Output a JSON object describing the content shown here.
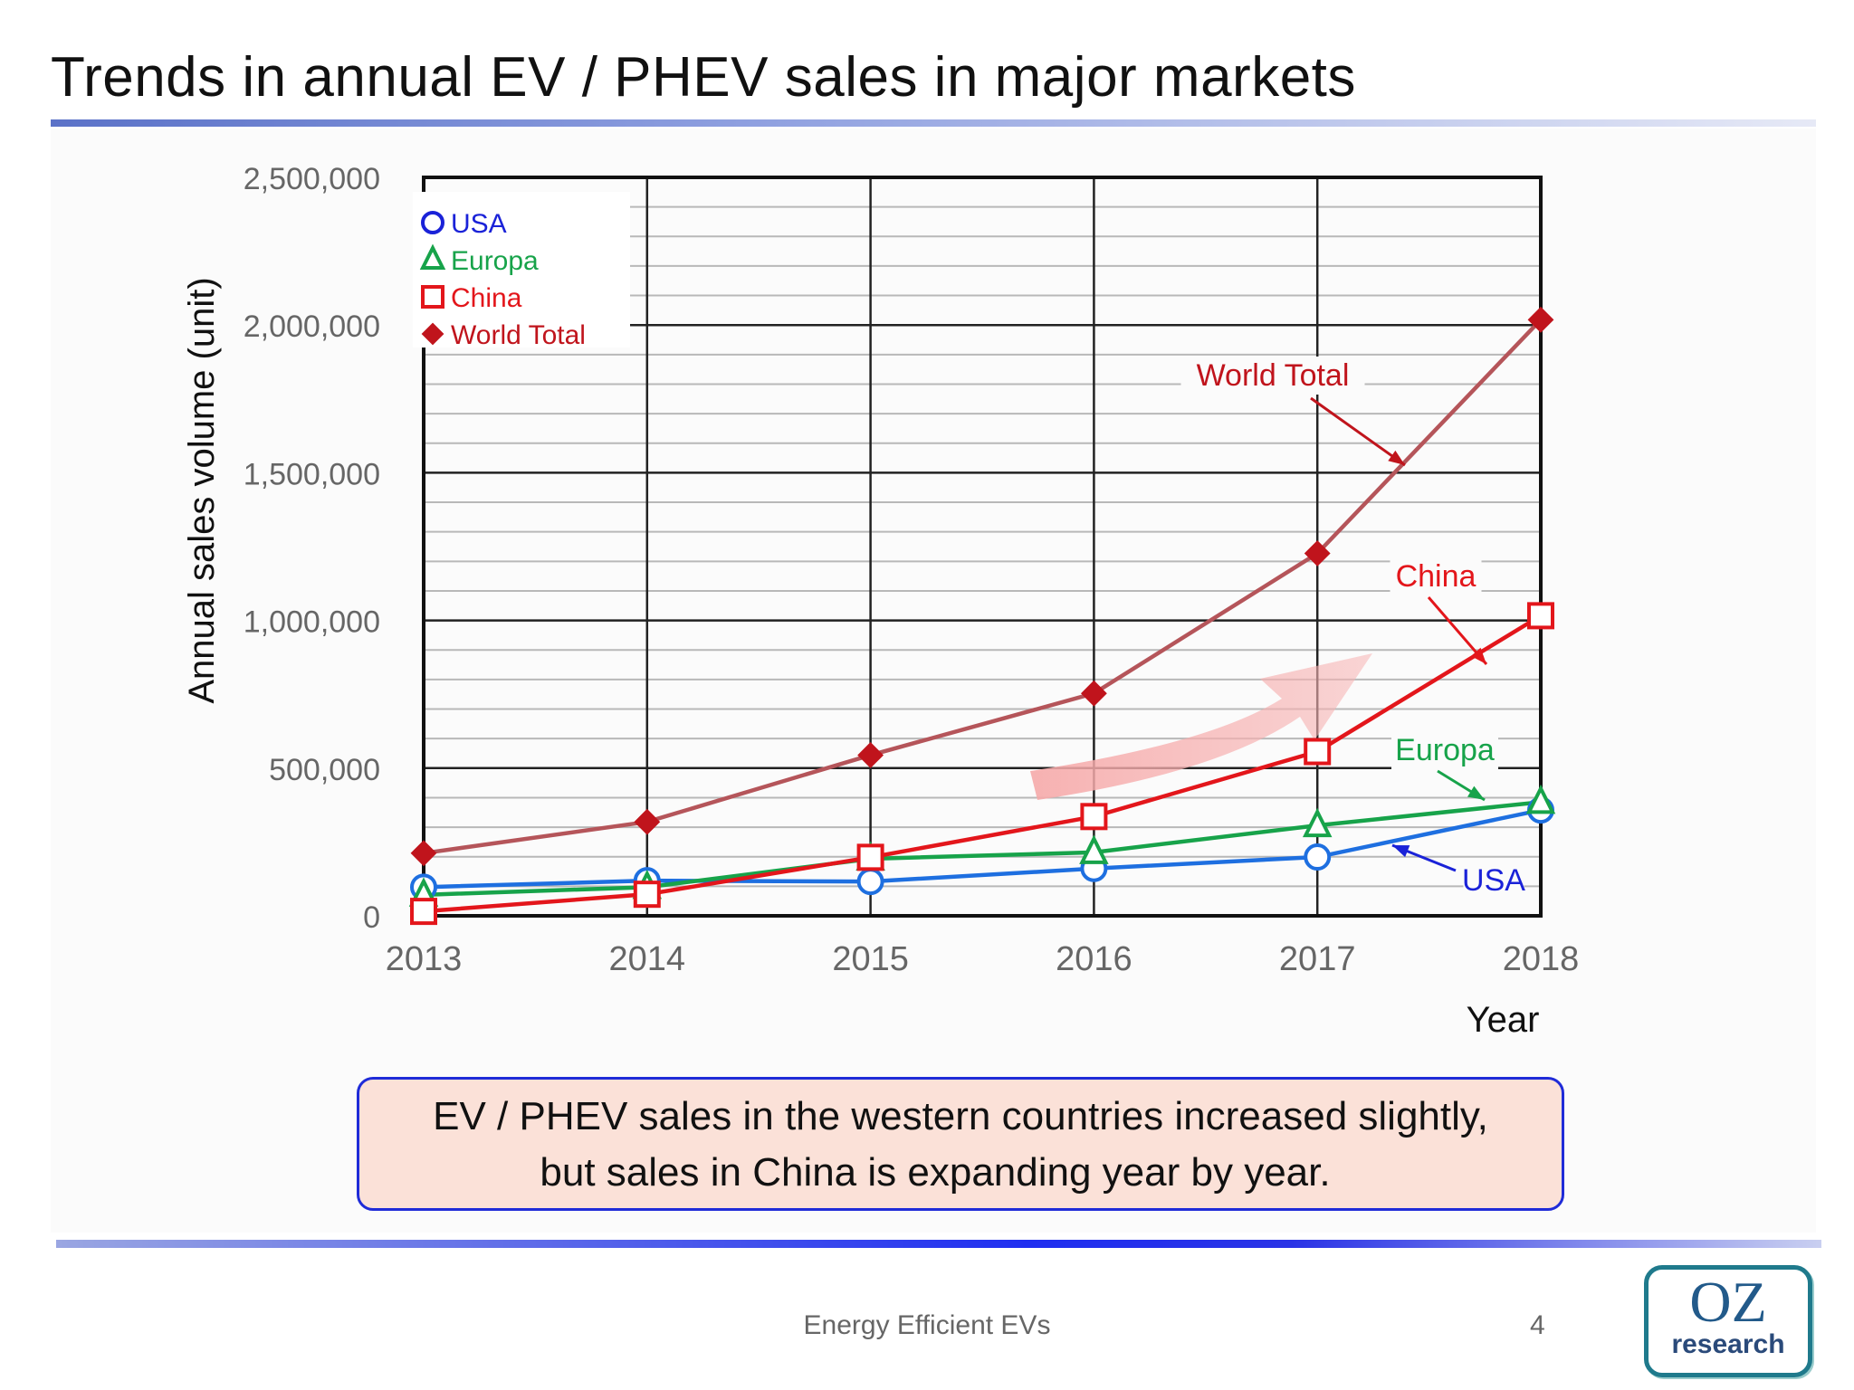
{
  "slide": {
    "title": "Trends in annual EV / PHEV sales in major markets",
    "callout_line1": "EV / PHEV sales in the western countries increased slightly,",
    "callout_line2": "but sales in China is expanding year by year.",
    "footer": "Energy Efficient EVs",
    "page_number": "4",
    "logo_line1": "OZ",
    "logo_line2": "research"
  },
  "chart_data": {
    "type": "line",
    "title": "",
    "xlabel": "Year",
    "ylabel": "Annual sales volume (unit)",
    "x": [
      2013,
      2014,
      2015,
      2016,
      2017,
      2018
    ],
    "x_tick_labels": [
      "2013",
      "2014",
      "2015",
      "2016",
      "2017",
      "2018"
    ],
    "ylim": [
      0,
      2500000
    ],
    "y_ticks": [
      0,
      500000,
      1000000,
      1500000,
      2000000,
      2500000
    ],
    "y_tick_labels": [
      "0",
      "500,000",
      "1,000,000",
      "1,500,000",
      "2,000,000",
      "2,500,000"
    ],
    "grid": true,
    "legend_position": "top-left",
    "series": [
      {
        "name": "USA",
        "label": "USA",
        "legend": "USA",
        "marker": "circle",
        "color": "#1e6fe0",
        "marker_color": "#1e6fe0",
        "legend_color": "#1a22d8",
        "values": [
          97000,
          119000,
          116000,
          160000,
          199000,
          358000
        ]
      },
      {
        "name": "Europa",
        "label": "Europa",
        "legend": "Europa",
        "marker": "triangle",
        "color": "#17a34a",
        "marker_color": "#17a34a",
        "legend_color": "#17a34a",
        "values": [
          71000,
          97000,
          193000,
          215000,
          306000,
          385000
        ]
      },
      {
        "name": "China",
        "label": "China",
        "legend": "China",
        "marker": "square",
        "color": "#e3161b",
        "marker_color": "#e3161b",
        "legend_color": "#e3161b",
        "values": [
          15000,
          73000,
          198000,
          336000,
          556000,
          1016000
        ]
      },
      {
        "name": "World Total",
        "label": "World Total",
        "legend": "World Total",
        "marker": "diamond",
        "color": "#b5555a",
        "marker_color": "#c0141c",
        "legend_color": "#c0141c",
        "values": [
          212000,
          318000,
          544000,
          753000,
          1227000,
          2018000
        ]
      }
    ]
  }
}
